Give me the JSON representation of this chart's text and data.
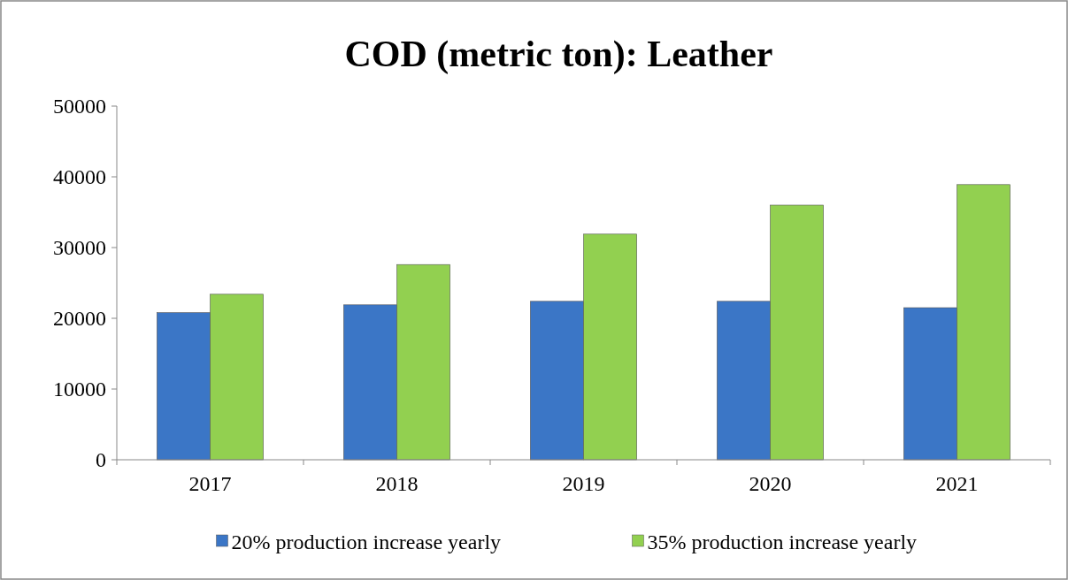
{
  "chart_data": {
    "type": "bar",
    "title": "COD (metric ton): Leather",
    "categories": [
      "2017",
      "2018",
      "2019",
      "2020",
      "2021"
    ],
    "series": [
      {
        "name": "20% production increase yearly",
        "color": "#3b76c6",
        "values": [
          20800,
          21900,
          22400,
          22400,
          21500
        ]
      },
      {
        "name": "35% production increase yearly",
        "color": "#92d050",
        "values": [
          23400,
          27600,
          31900,
          36000,
          38900
        ]
      }
    ],
    "ylim": [
      0,
      50000
    ],
    "yticks": [
      0,
      10000,
      20000,
      30000,
      40000,
      50000
    ],
    "grid": false,
    "legend": "bottom"
  }
}
